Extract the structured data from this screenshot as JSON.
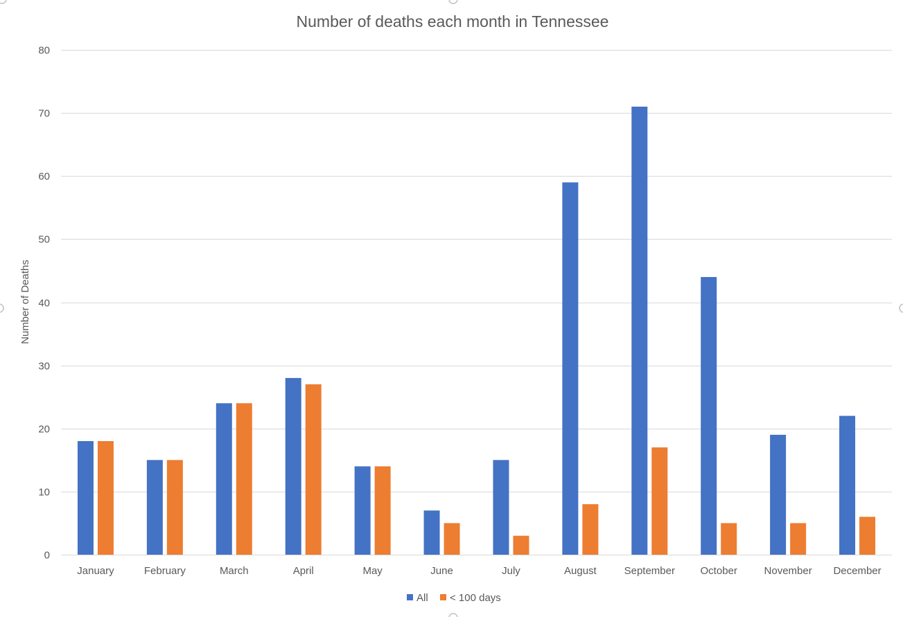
{
  "chart_data": {
    "type": "bar",
    "title": "Number of deaths each month in Tennessee",
    "xlabel": "",
    "ylabel": "Number of Deaths",
    "ylim": [
      0,
      80
    ],
    "yticks": [
      0,
      10,
      20,
      30,
      40,
      50,
      60,
      70,
      80
    ],
    "grid": true,
    "legend_position": "bottom",
    "categories": [
      "January",
      "February",
      "March",
      "April",
      "May",
      "June",
      "July",
      "August",
      "September",
      "October",
      "November",
      "December"
    ],
    "series": [
      {
        "name": "All",
        "color": "#4472C4",
        "values": [
          18,
          15,
          24,
          28,
          14,
          7,
          15,
          59,
          71,
          44,
          19,
          22
        ]
      },
      {
        "name": "< 100 days",
        "color": "#ED7D31",
        "values": [
          18,
          15,
          24,
          27,
          14,
          5,
          3,
          8,
          17,
          5,
          5,
          6
        ]
      }
    ]
  }
}
